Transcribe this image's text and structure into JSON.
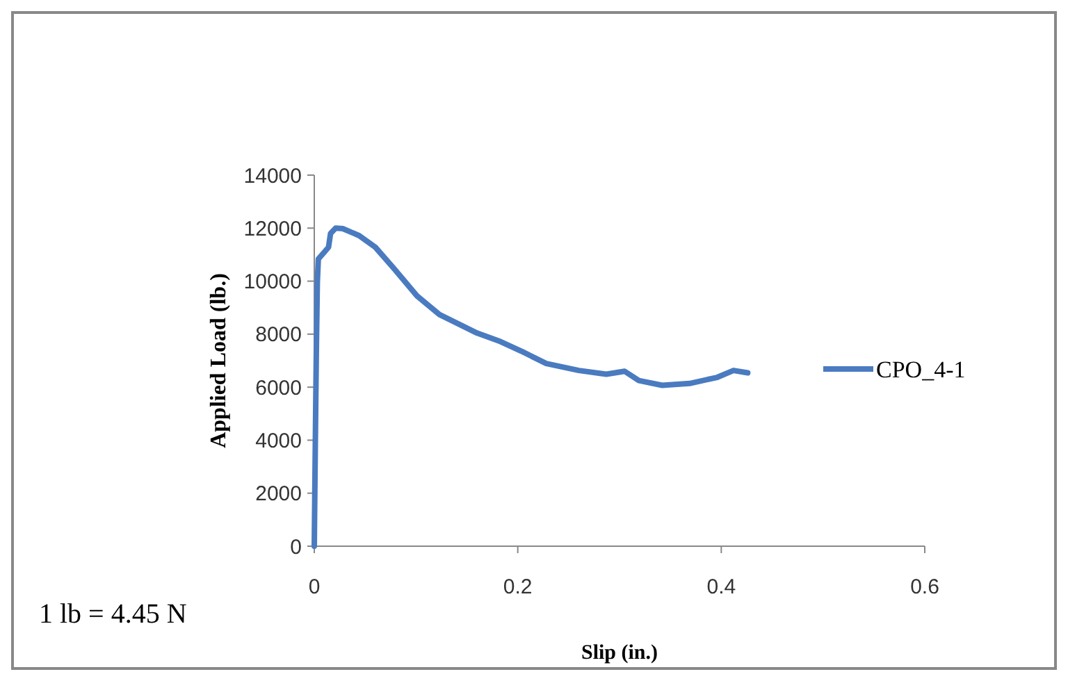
{
  "chart_data": {
    "type": "line",
    "xlabel": "Slip (in.)",
    "ylabel": "Applied Load (lb.)",
    "annotations": [
      "1 lb = 4.45 N"
    ],
    "xlim": [
      0,
      0.6
    ],
    "xticks": [
      0,
      0.2,
      0.4,
      0.6
    ],
    "ylim": [
      0,
      14000
    ],
    "yticks": [
      0,
      2000,
      4000,
      6000,
      8000,
      10000,
      12000,
      14000
    ],
    "grid": false,
    "legend": "right",
    "marker": "none",
    "line_style": "solid",
    "series": [
      {
        "name": "CPO_4-1",
        "color": "#4a7bc0",
        "x": [
          0,
          0.001,
          0.002,
          0.003,
          0.004,
          0.01,
          0.014,
          0.016,
          0.021,
          0.028,
          0.044,
          0.06,
          0.078,
          0.101,
          0.123,
          0.16,
          0.183,
          0.205,
          0.228,
          0.26,
          0.287,
          0.305,
          0.319,
          0.342,
          0.369,
          0.396,
          0.412,
          0.426
        ],
        "values": [
          0,
          3800,
          7300,
          9960,
          10840,
          11100,
          11280,
          11800,
          12000,
          11980,
          11720,
          11280,
          10490,
          9440,
          8740,
          8040,
          7720,
          7330,
          6890,
          6630,
          6490,
          6600,
          6250,
          6070,
          6140,
          6370,
          6630,
          6540
        ]
      }
    ]
  }
}
